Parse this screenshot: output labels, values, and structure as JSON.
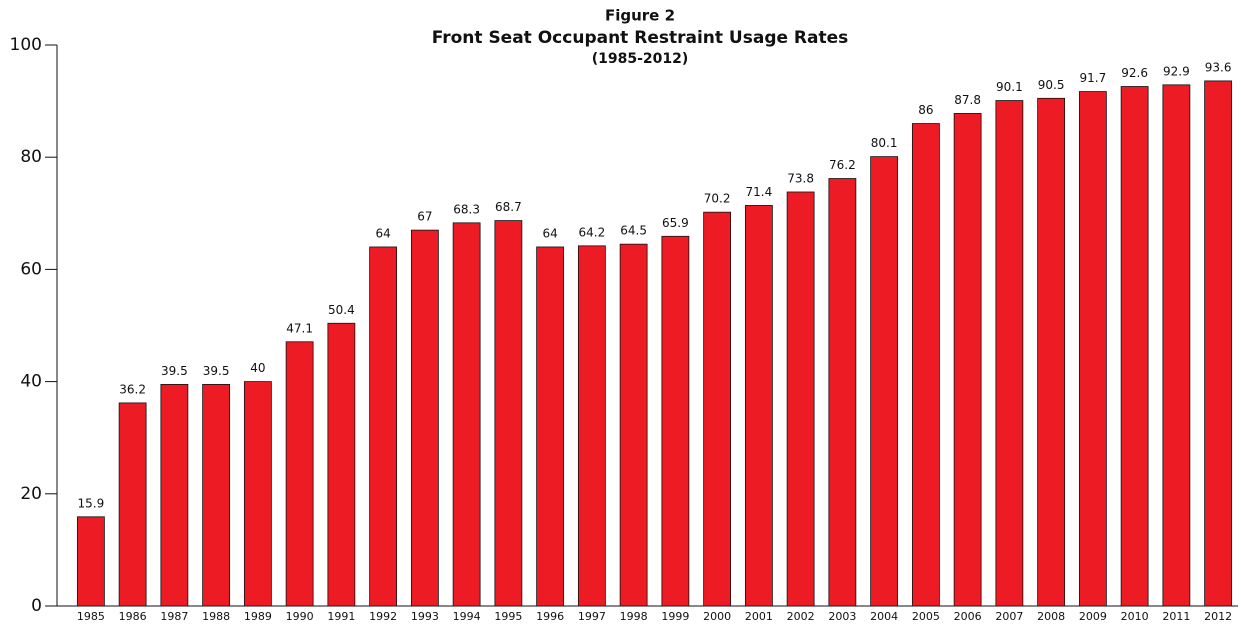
{
  "chart_data": {
    "type": "bar",
    "title": "Figure 2",
    "subtitle": "Front Seat Occupant Restraint Usage Rates",
    "annotation": "(1985-2012)",
    "categories": [
      "1985",
      "1986",
      "1987",
      "1988",
      "1989",
      "1990",
      "1991",
      "1992",
      "1993",
      "1994",
      "1995",
      "1996",
      "1997",
      "1998",
      "1999",
      "2000",
      "2001",
      "2002",
      "2003",
      "2004",
      "2005",
      "2006",
      "2007",
      "2008",
      "2009",
      "2010",
      "2011",
      "2012"
    ],
    "values": [
      15.9,
      36.2,
      39.5,
      39.5,
      40,
      47.1,
      50.4,
      64,
      67,
      68.3,
      68.7,
      64,
      64.2,
      64.5,
      65.9,
      70.2,
      71.4,
      73.8,
      76.2,
      80.1,
      86,
      87.8,
      90.1,
      90.5,
      91.7,
      92.6,
      92.9,
      93.6
    ],
    "color": "#ed1c24",
    "ylim": [
      0,
      100
    ],
    "yticks": [
      0,
      20,
      40,
      60,
      80,
      100
    ],
    "grid": false
  }
}
